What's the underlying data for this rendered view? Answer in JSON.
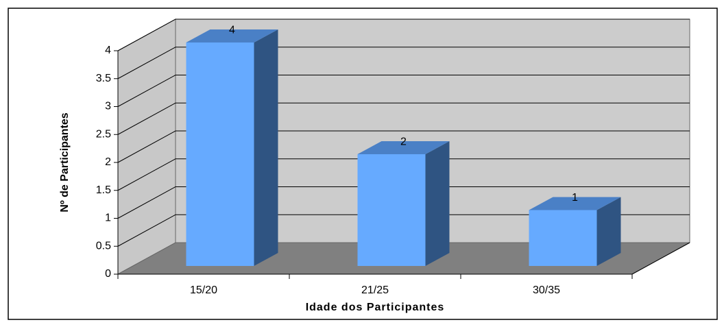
{
  "chart_data": {
    "type": "bar3d",
    "categories": [
      "15/20",
      "21/25",
      "30/35"
    ],
    "values": [
      4,
      2,
      1
    ],
    "color": "#66aaff",
    "xlabel": "Idade dos Participantes",
    "ylabel": "Nº de Participantes",
    "ylim": [
      0,
      4
    ],
    "yticks": [
      0,
      0.5,
      1,
      1.5,
      2,
      2.5,
      3,
      3.5,
      4
    ],
    "grid": true
  }
}
